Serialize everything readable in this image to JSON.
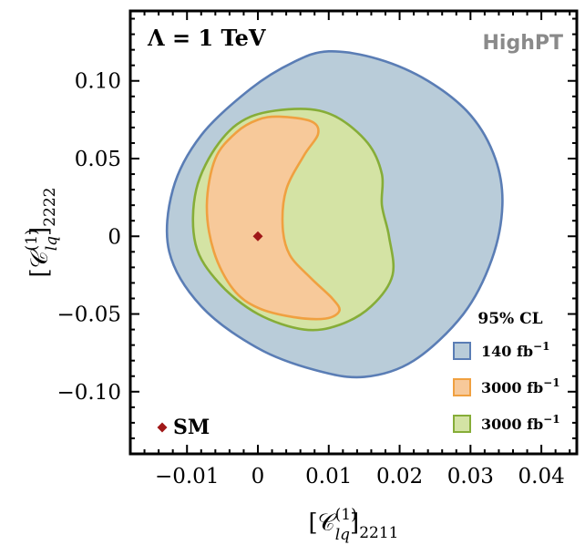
{
  "chart_data": {
    "type": "contour",
    "title": "",
    "annotation_lambda": "Λ = 1 TeV",
    "watermark": "HighPT",
    "xlabel": {
      "base": "[𝒞",
      "sup": "(1)",
      "sub": "lq",
      "tail": "]",
      "index": "2211"
    },
    "ylabel": {
      "base": "[𝒞",
      "sup": "(1)",
      "sub": "lq",
      "tail": "]",
      "index": "2222"
    },
    "xlim": [
      -0.018,
      0.045
    ],
    "ylim": [
      -0.14,
      0.145
    ],
    "xticks": [
      -0.01,
      0,
      0.01,
      0.02,
      0.03,
      0.04
    ],
    "xtick_labels": [
      "−0.01",
      "0",
      "0.01",
      "0.02",
      "0.03",
      "0.04"
    ],
    "yticks": [
      -0.1,
      -0.05,
      0,
      0.05,
      0.1
    ],
    "ytick_labels": [
      "−0.10",
      "−0.05",
      "0",
      "0.05",
      "0.10"
    ],
    "legend": {
      "title": "95% CL",
      "placement": "bottom-right",
      "entries": [
        {
          "label": "140 fb",
          "sup": "−1",
          "fill": "#b9ccd9",
          "stroke": "#5a7db5"
        },
        {
          "label": "3000 fb",
          "sup": "−1",
          "fill": "#f7c99a",
          "stroke": "#f0a040"
        },
        {
          "label": "3000 fb",
          "sup": "−1",
          "fill": "#d4e3a4",
          "stroke": "#86ad38"
        }
      ]
    },
    "sm_point": {
      "x": 0,
      "y": 0,
      "label": "SM",
      "color": "#a01818"
    },
    "regions": [
      {
        "name": "140 fb-1",
        "fill": "#b9ccd9",
        "stroke": "#5a7db5",
        "points": [
          [
            0.01,
            0.119
          ],
          [
            0.017,
            0.114
          ],
          [
            0.024,
            0.1
          ],
          [
            0.03,
            0.078
          ],
          [
            0.0335,
            0.05
          ],
          [
            0.0345,
            0.02
          ],
          [
            0.033,
            -0.015
          ],
          [
            0.029,
            -0.05
          ],
          [
            0.022,
            -0.08
          ],
          [
            0.015,
            -0.0905
          ],
          [
            0.008,
            -0.086
          ],
          [
            0.0,
            -0.072
          ],
          [
            -0.008,
            -0.045
          ],
          [
            -0.0125,
            -0.01
          ],
          [
            -0.012,
            0.03
          ],
          [
            -0.008,
            0.065
          ],
          [
            -0.001,
            0.095
          ],
          [
            0.005,
            0.112
          ]
        ]
      },
      {
        "name": "3000 fb-1 (green)",
        "fill": "#d4e3a4",
        "stroke": "#86ad38",
        "points": [
          [
            0.006,
            0.082
          ],
          [
            0.011,
            0.077
          ],
          [
            0.0155,
            0.06
          ],
          [
            0.0175,
            0.04
          ],
          [
            0.0175,
            0.02
          ],
          [
            0.0185,
            0.0
          ],
          [
            0.019,
            -0.025
          ],
          [
            0.016,
            -0.045
          ],
          [
            0.0115,
            -0.057
          ],
          [
            0.0065,
            -0.06
          ],
          [
            0.0,
            -0.05
          ],
          [
            -0.0055,
            -0.03
          ],
          [
            -0.0088,
            -0.005
          ],
          [
            -0.0087,
            0.03
          ],
          [
            -0.0055,
            0.06
          ],
          [
            -0.001,
            0.077
          ]
        ]
      },
      {
        "name": "3000 fb-1 (orange)",
        "fill": "#f7c99a",
        "stroke": "#f0a040",
        "points": [
          [
            0.0,
            0.075
          ],
          [
            0.003,
            0.077
          ],
          [
            0.0075,
            0.074
          ],
          [
            0.0085,
            0.066
          ],
          [
            0.0065,
            0.052
          ],
          [
            0.004,
            0.03
          ],
          [
            0.0035,
            0.006
          ],
          [
            0.0045,
            -0.012
          ],
          [
            0.0075,
            -0.027
          ],
          [
            0.0105,
            -0.04
          ],
          [
            0.0115,
            -0.048
          ],
          [
            0.0095,
            -0.053
          ],
          [
            0.005,
            -0.052
          ],
          [
            0.0,
            -0.046
          ],
          [
            -0.0035,
            -0.034
          ],
          [
            -0.0062,
            -0.01
          ],
          [
            -0.0072,
            0.02
          ],
          [
            -0.006,
            0.05
          ],
          [
            -0.003,
            0.067
          ]
        ]
      }
    ]
  }
}
